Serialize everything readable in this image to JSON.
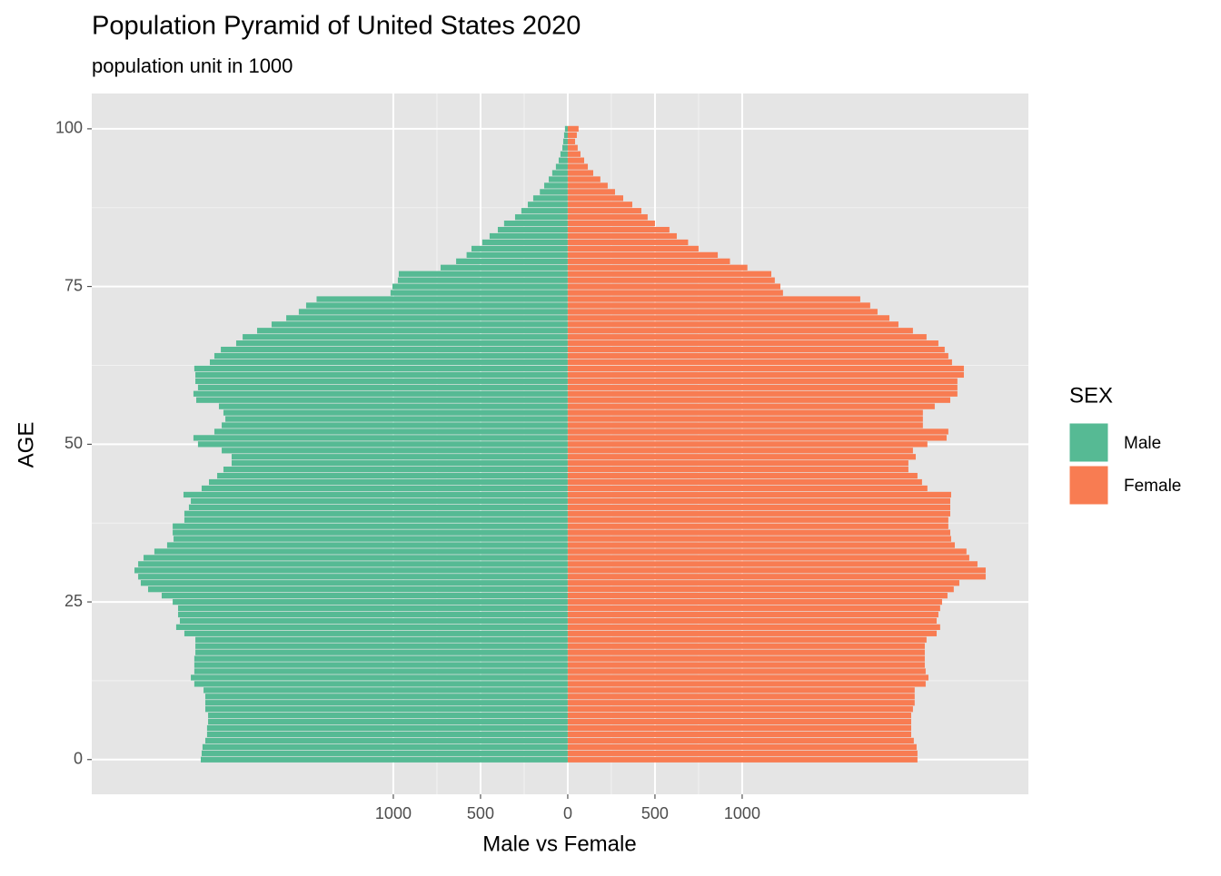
{
  "chart_data": {
    "type": "bar",
    "orientation": "horizontal",
    "title": "Population Pyramid of United States 2020",
    "subtitle": "population unit in 1000",
    "x_label": "Male vs Female",
    "y_label": "AGE",
    "legend_title": "SEX",
    "categories": [
      0,
      1,
      2,
      3,
      4,
      5,
      6,
      7,
      8,
      9,
      10,
      11,
      12,
      13,
      14,
      15,
      16,
      17,
      18,
      19,
      20,
      21,
      22,
      23,
      24,
      25,
      26,
      27,
      28,
      29,
      30,
      31,
      32,
      33,
      34,
      35,
      36,
      37,
      38,
      39,
      40,
      41,
      42,
      43,
      44,
      45,
      46,
      47,
      48,
      49,
      50,
      51,
      52,
      53,
      54,
      55,
      56,
      57,
      58,
      59,
      60,
      61,
      62,
      63,
      64,
      65,
      66,
      67,
      68,
      69,
      70,
      71,
      72,
      73,
      74,
      75,
      76,
      77,
      78,
      79,
      80,
      81,
      82,
      83,
      84,
      85,
      86,
      87,
      88,
      89,
      90,
      91,
      92,
      93,
      94,
      95,
      96,
      97,
      98,
      99,
      100
    ],
    "series": [
      {
        "name": "Male",
        "color": "#56BA94",
        "values": [
          -2104,
          -2099,
          -2094,
          -2078,
          -2068,
          -2068,
          -2062,
          -2062,
          -2078,
          -2078,
          -2078,
          -2088,
          -2141,
          -2161,
          -2141,
          -2141,
          -2141,
          -2135,
          -2135,
          -2135,
          -2198,
          -2245,
          -2224,
          -2234,
          -2234,
          -2265,
          -2328,
          -2406,
          -2448,
          -2463,
          -2484,
          -2463,
          -2432,
          -2370,
          -2297,
          -2260,
          -2265,
          -2265,
          -2198,
          -2198,
          -2172,
          -2161,
          -2203,
          -2099,
          -2057,
          -2010,
          -1974,
          -1927,
          -1927,
          -1984,
          -2120,
          -2146,
          -2026,
          -1984,
          -1963,
          -1974,
          -2000,
          -2130,
          -2146,
          -2120,
          -2135,
          -2135,
          -2141,
          -2052,
          -2026,
          -1989,
          -1901,
          -1864,
          -1781,
          -1698,
          -1614,
          -1542,
          -1500,
          -1440,
          -1016,
          -1005,
          -974,
          -969,
          -729,
          -640,
          -580,
          -552,
          -490,
          -448,
          -401,
          -365,
          -302,
          -266,
          -229,
          -198,
          -160,
          -135,
          -109,
          -89,
          -68,
          -52,
          -42,
          -31,
          -26,
          -21,
          -16
        ]
      },
      {
        "name": "Female",
        "color": "#F87C52",
        "values": [
          2005,
          2005,
          2000,
          1984,
          1969,
          1969,
          1969,
          1969,
          1979,
          1989,
          1989,
          1989,
          2052,
          2068,
          2052,
          2047,
          2047,
          2047,
          2047,
          2057,
          2115,
          2135,
          2115,
          2125,
          2135,
          2146,
          2177,
          2213,
          2245,
          2396,
          2396,
          2349,
          2302,
          2286,
          2219,
          2198,
          2193,
          2182,
          2182,
          2193,
          2193,
          2193,
          2198,
          2062,
          2031,
          2005,
          1953,
          1953,
          1995,
          1979,
          2062,
          2172,
          2182,
          2036,
          2036,
          2036,
          2104,
          2193,
          2234,
          2234,
          2234,
          2271,
          2271,
          2203,
          2182,
          2161,
          2125,
          2057,
          1979,
          1896,
          1844,
          1776,
          1734,
          1677,
          1234,
          1219,
          1187,
          1167,
          1030,
          930,
          860,
          750,
          690,
          625,
          583,
          500,
          458,
          422,
          370,
          318,
          271,
          229,
          187,
          146,
          115,
          94,
          73,
          57,
          42,
          52,
          62
        ]
      }
    ],
    "xlim": [
      -2729,
      2641
    ],
    "xticks": [
      {
        "value": -1000,
        "label": "1000"
      },
      {
        "value": -500,
        "label": "500"
      },
      0,
      500,
      1000
    ],
    "ylim": [
      -5.5,
      105.6
    ],
    "yticks": [
      0,
      25,
      50,
      75,
      100
    ],
    "grid": true
  }
}
